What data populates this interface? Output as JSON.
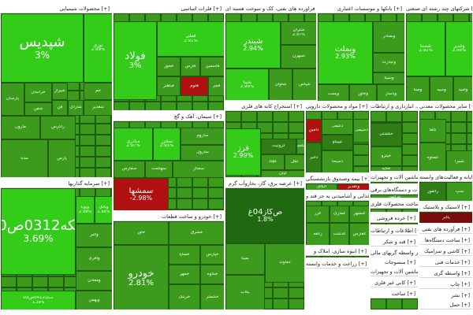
{
  "colors": {
    "up_bright": "#33cc19",
    "up": "#3c9a1d",
    "up_dark": "#2f7d15",
    "up_deep": "#1f6a10",
    "down": "#b01010",
    "down_dark": "#7a0c0c",
    "border": "#1f5a0e",
    "header_bg": "#ffffff"
  },
  "sectors": [
    {
      "id": "s1",
      "title": "محصولات شیمیایی [+]",
      "cells": [
        {
          "sym": "شپدیس",
          "chg": "3%",
          "size": "xl",
          "color": "up_bright"
        },
        {
          "sym": "نوری",
          "chg": "2.99%",
          "size": "s",
          "color": "up_bright"
        },
        {
          "sym": "پارسان",
          "chg": "",
          "size": "xs",
          "color": "up"
        },
        {
          "sym": "جم",
          "chg": "",
          "size": "xs",
          "color": "up"
        },
        {
          "sym": "شاراک",
          "chg": "",
          "size": "xs",
          "color": "up"
        },
        {
          "sym": "شغدیر",
          "chg": "",
          "size": "xs",
          "color": "up"
        },
        {
          "sym": "خراسان",
          "chg": "",
          "size": "xs",
          "color": "up"
        },
        {
          "sym": "شیراز",
          "chg": "",
          "size": "xs",
          "color": "up"
        },
        {
          "sym": "فن",
          "chg": "",
          "size": "xs",
          "color": "up"
        },
        {
          "sym": "شفن",
          "chg": "",
          "size": "xs",
          "color": "up"
        },
        {
          "sym": "مارون",
          "chg": "",
          "size": "xs",
          "color": "up"
        },
        {
          "sym": "زاگرس",
          "chg": "",
          "size": "xs",
          "color": "up"
        },
        {
          "sym": "سابا",
          "chg": "",
          "size": "xs",
          "color": "up"
        },
        {
          "sym": "پارس",
          "chg": "",
          "size": "xs",
          "color": "up"
        }
      ]
    },
    {
      "id": "s2",
      "title": "فلزات اساسی [+]",
      "cells": [
        {
          "sym": "فولاد",
          "chg": "3%",
          "size": "l",
          "color": "up_bright"
        },
        {
          "sym": "فملی",
          "chg": "2.91%",
          "size": "s",
          "color": "up_bright"
        },
        {
          "sym": "فخوز",
          "chg": "",
          "size": "xs",
          "color": "up"
        },
        {
          "sym": "فارس",
          "chg": "",
          "size": "xs",
          "color": "up"
        },
        {
          "sym": "فاسمین",
          "chg": "",
          "size": "xs",
          "color": "up"
        },
        {
          "sym": "فلوم",
          "chg": "",
          "size": "xs",
          "color": "down"
        },
        {
          "sym": "فباهنر",
          "chg": "",
          "size": "xs",
          "color": "up"
        },
        {
          "sym": "فجر",
          "chg": "",
          "size": "xs",
          "color": "up"
        }
      ]
    },
    {
      "id": "s3",
      "title": "فراورده های نفتی، کک و سوخت هسته ای [+]",
      "cells": [
        {
          "sym": "شبندر",
          "chg": "2.94%",
          "size": "m",
          "color": "up_bright"
        },
        {
          "sym": "شتران",
          "chg": "2.97%",
          "size": "xs",
          "color": "up"
        },
        {
          "sym": "شپنا",
          "chg": "2.99%",
          "size": "s",
          "color": "up_bright"
        },
        {
          "sym": "شبهرن",
          "chg": "",
          "size": "xs",
          "color": "up"
        },
        {
          "sym": "شاوان",
          "chg": "",
          "size": "xs",
          "color": "up"
        },
        {
          "sym": "شپاس",
          "chg": "",
          "size": "xs",
          "color": "up"
        }
      ]
    },
    {
      "id": "s4",
      "title": "بانکها و موسسات اعتباری [+]",
      "cells": [
        {
          "sym": "وبملت",
          "chg": "2.93%",
          "size": "m",
          "color": "up_bright"
        },
        {
          "sym": "وبصادر",
          "chg": "",
          "size": "xs",
          "color": "up"
        },
        {
          "sym": "وتجارت",
          "chg": "",
          "size": "xs",
          "color": "up"
        },
        {
          "sym": "وپست",
          "chg": "",
          "size": "xs",
          "color": "up"
        },
        {
          "sym": "وخاور",
          "chg": "",
          "size": "xs",
          "color": "up"
        },
        {
          "sym": "وسینا",
          "chg": "",
          "size": "xs",
          "color": "up"
        },
        {
          "sym": "وپاسار",
          "chg": "",
          "size": "xs",
          "color": "up"
        },
        {
          "sym": "ونوین",
          "chg": "",
          "size": "xs",
          "color": "up"
        }
      ]
    },
    {
      "id": "s5",
      "title": "شرکتهای چند رشته ای صنعتی [+]",
      "cells": [
        {
          "sym": "شستا",
          "chg": "2.92%",
          "size": "s",
          "color": "up_bright"
        },
        {
          "sym": "وغدیر",
          "chg": "2.96%",
          "size": "s",
          "color": "up_bright"
        },
        {
          "sym": "وصنا",
          "chg": "",
          "size": "xs",
          "color": "up"
        },
        {
          "sym": "وسپه",
          "chg": "",
          "size": "xs",
          "color": "up"
        },
        {
          "sym": "وامید",
          "chg": "",
          "size": "xs",
          "color": "up"
        }
      ]
    },
    {
      "id": "s6",
      "title": "سیمان، آهک و گچ [+]",
      "cells": [
        {
          "sym": "ساذری",
          "chg": "2.97%",
          "size": "s",
          "color": "up_bright"
        },
        {
          "sym": "سخزر",
          "chg": "2.95%",
          "size": "s",
          "color": "up_bright"
        },
        {
          "sym": "ساروم",
          "chg": "",
          "size": "xs",
          "color": "up"
        },
        {
          "sym": "سارول",
          "chg": "",
          "size": "xs",
          "color": "up"
        },
        {
          "sym": "سفارس",
          "chg": "",
          "size": "xs",
          "color": "up"
        },
        {
          "sym": "سهگمت",
          "chg": "",
          "size": "xs",
          "color": "up"
        },
        {
          "sym": "سمتاز",
          "chg": "",
          "size": "xs",
          "color": "up"
        },
        {
          "sym": "ساوه",
          "chg": "",
          "size": "xs",
          "color": "up"
        },
        {
          "sym": "سفقا",
          "chg": "",
          "size": "xs",
          "color": "up"
        },
        {
          "sym": "سبزوا",
          "chg": "",
          "size": "xs",
          "color": "up"
        },
        {
          "sym": "سمشها",
          "chg": "-2.98%",
          "size": "m",
          "color": "down"
        }
      ]
    },
    {
      "id": "s7",
      "title": "استخراج کانه های فلزی [+]",
      "cells": [
        {
          "sym": "فرز",
          "chg": "2.99%",
          "size": "m",
          "color": "up_bright"
        },
        {
          "sym": "کروثیت",
          "chg": "",
          "size": "xs",
          "color": "up_dark"
        },
        {
          "sym": "کچاد",
          "chg": "",
          "size": "xs",
          "color": "up"
        },
        {
          "sym": "کگل",
          "chg": "",
          "size": "xs",
          "color": "up"
        },
        {
          "sym": "تکسا",
          "chg": "",
          "size": "xs",
          "color": "up"
        },
        {
          "sym": "کیان",
          "chg": "",
          "size": "xs",
          "color": "up"
        }
      ]
    },
    {
      "id": "s8",
      "title": "مواد و محصولات دارویی [+]",
      "cells": [
        {
          "sym": "دالبر",
          "chg": "",
          "size": "xs",
          "color": "up_dark"
        },
        {
          "sym": "دکیمی",
          "chg": "",
          "size": "xs",
          "color": "up"
        },
        {
          "sym": "تیپیکو",
          "chg": "",
          "size": "xs",
          "color": "up_dark"
        },
        {
          "sym": "دشیمی",
          "chg": "",
          "size": "xs",
          "color": "up"
        },
        {
          "sym": "دسبحا",
          "chg": "",
          "size": "xs",
          "color": "up"
        },
        {
          "sym": "دامین",
          "chg": "",
          "size": "xs",
          "color": "down"
        }
      ]
    },
    {
      "id": "s9",
      "title": "حمل ونقل، انبارداری و ارتباطات [+]",
      "cells": [
        {
          "sym": "حکشتی",
          "chg": "",
          "size": "xs",
          "color": "up_dark"
        },
        {
          "sym": "حپترو",
          "chg": "",
          "size": "xs",
          "color": "up"
        },
        {
          "sym": "حتاید",
          "chg": "",
          "size": "xs",
          "color": "up"
        }
      ]
    },
    {
      "id": "s10",
      "title": "سایر محصولات معدنی [+]",
      "cells": [
        {
          "sym": "کساوه",
          "chg": "",
          "size": "xs",
          "color": "up"
        },
        {
          "sym": "کسرا",
          "chg": "",
          "size": "xs",
          "color": "up"
        },
        {
          "sym": "کاما",
          "chg": "",
          "size": "xs",
          "color": "up"
        }
      ]
    },
    {
      "id": "s11",
      "title": "رایانه و فعالیت‌های وابسته [+]",
      "cells": [
        {
          "sym": "رانفور",
          "chg": "",
          "size": "xs",
          "color": "up_dark"
        },
        {
          "sym": "سپ",
          "chg": "",
          "size": "xs",
          "color": "up"
        }
      ]
    },
    {
      "id": "s12",
      "title": "عرضه برق، گاز، بخاروآب گرم [+]",
      "cells": [
        {
          "sym": "ص‌گاز04غ",
          "chg": "1.8%",
          "size": "m",
          "color": "up_deep"
        },
        {
          "sym": "بمپنا",
          "chg": "",
          "size": "xs",
          "color": "up"
        },
        {
          "sym": "دماوند",
          "chg": "",
          "size": "xs",
          "color": "up"
        },
        {
          "sym": "بکاب",
          "chg": "",
          "size": "xs",
          "color": "up"
        }
      ]
    },
    {
      "id": "s13",
      "title": "بیمه وصندوق بازنشستگی [+]",
      "cells": [
        {
          "sym": "اتکای",
          "chg": "",
          "size": "xs",
          "color": "up"
        },
        {
          "sym": "وکغدیر",
          "chg": "",
          "size": "xs",
          "color": "down"
        }
      ]
    },
    {
      "id": "s14",
      "title": "ماشین آلات و تجهیزات [+]",
      "cells": [
        {
          "sym": "کالا",
          "chg": "",
          "size": "xs",
          "color": "up"
        }
      ]
    },
    {
      "id": "s15",
      "title": "ماشین آلات و دستگاه‌های برقی [+]",
      "cells": [
        {
          "sym": "بترانس",
          "chg": "",
          "size": "xs",
          "color": "up"
        }
      ]
    },
    {
      "id": "s16",
      "title": "لاستیک و پلاستیک [+]",
      "cells": [
        {
          "sym": "پتایر",
          "chg": "",
          "size": "xs",
          "color": "down_dark"
        }
      ]
    },
    {
      "id": "s17",
      "title": "سرمایه گذاریها [+]",
      "cells": [
        {
          "sym": "سکه0312ص10",
          "chg": "3.69%",
          "size": "xl",
          "color": "up_bright"
        },
        {
          "sym": "وپویا",
          "chg": "2.99%",
          "size": "xs",
          "color": "up_bright"
        },
        {
          "sym": "وبانک",
          "chg": "2.98%",
          "size": "xs",
          "color": "up_bright"
        },
        {
          "sym": "والبر",
          "chg": "",
          "size": "xs",
          "color": "up"
        },
        {
          "sym": "وآفری",
          "chg": "",
          "size": "xs",
          "color": "up"
        },
        {
          "sym": "ومعادن",
          "chg": "",
          "size": "xs",
          "color": "up"
        },
        {
          "sym": "وبهمن",
          "chg": "",
          "size": "xs",
          "color": "up"
        },
        {
          "sym": "سکه0412ص03",
          "chg": "3.39%",
          "size": "xs",
          "color": "up_bright"
        }
      ]
    },
    {
      "id": "s18",
      "title": "خودرو و ساخت قطعات [+]",
      "cells": [
        {
          "sym": "خودرو",
          "chg": "2.81%",
          "size": "l",
          "color": "up"
        },
        {
          "sym": "خساپا",
          "chg": "",
          "size": "xs",
          "color": "up"
        },
        {
          "sym": "خپارس",
          "chg": "",
          "size": "xs",
          "color": "up"
        },
        {
          "sym": "خمهر",
          "chg": "",
          "size": "xs",
          "color": "up"
        },
        {
          "sym": "خکاوه",
          "chg": "",
          "size": "xs",
          "color": "up"
        },
        {
          "sym": "خرینگ",
          "chg": "",
          "size": "xs",
          "color": "up"
        },
        {
          "sym": "خگستر",
          "chg": "",
          "size": "xs",
          "color": "up"
        },
        {
          "sym": "خاور",
          "chg": "",
          "size": "xs",
          "color": "up"
        },
        {
          "sym": "خشرق",
          "chg": "",
          "size": "xs",
          "color": "up"
        }
      ]
    },
    {
      "id": "s19",
      "title": "محصولات غذایی و آشامیدنی به جز قند و [+]",
      "cells": [
        {
          "sym": "غزر",
          "chg": "",
          "size": "xs",
          "color": "up"
        },
        {
          "sym": "غمارگ",
          "chg": "",
          "size": "xs",
          "color": "up"
        },
        {
          "sym": "غبشهر",
          "chg": "",
          "size": "xs",
          "color": "up"
        },
        {
          "sym": "زغفه",
          "chg": "",
          "size": "xs",
          "color": "up"
        },
        {
          "sym": "غدشت",
          "chg": "",
          "size": "xs",
          "color": "up"
        },
        {
          "sym": "غفارس",
          "chg": "",
          "size": "xs",
          "color": "up"
        },
        {
          "sym": "غکوش",
          "chg": "",
          "size": "xs",
          "color": "up"
        },
        {
          "sym": "غپینو",
          "chg": "",
          "size": "xs",
          "color": "up"
        }
      ]
    },
    {
      "id": "s20",
      "title": "انبوه سازی، املاک و [+]",
      "cells": []
    },
    {
      "id": "s21",
      "title": "زراعت و خدمات وابسته [+]",
      "cells": []
    },
    {
      "id": "s22",
      "title": "ساخت محصولات فلزی [+]",
      "cells": []
    },
    {
      "id": "s23",
      "title": "خرده فروشی [+]",
      "cells": []
    },
    {
      "id": "s24",
      "title": "اطلاعات و ارتباطات [+]",
      "cells": []
    },
    {
      "id": "s25",
      "title": "قند و شکر [+]",
      "cells": []
    },
    {
      "id": "s26",
      "title": "فرآورده های نفتی [+]",
      "cells": []
    },
    {
      "id": "s27",
      "title": "ساخت دستگاه‌ها [+]",
      "cells": []
    },
    {
      "id": "s28",
      "title": "سایر واسطه گریهای مالی [+]",
      "cells": []
    },
    {
      "id": "s29",
      "title": "کاشی و سرامیک [+]",
      "cells": []
    },
    {
      "id": "s30",
      "title": "منسوجات [+]",
      "cells": []
    },
    {
      "id": "s31",
      "title": "خدمات فنی [+]",
      "cells": []
    },
    {
      "id": "s32",
      "title": "ماشین آلات و تجهیزات [+]",
      "cells": []
    },
    {
      "id": "s33",
      "title": "واسطه گری [+]",
      "cells": []
    },
    {
      "id": "s34",
      "title": "کانی غیر فلزی [+]",
      "cells": []
    },
    {
      "id": "s35",
      "title": "چاپ [+]",
      "cells": []
    },
    {
      "id": "s36",
      "title": "ساخت [+]",
      "cells": []
    },
    {
      "id": "s37",
      "title": "نشر [+]",
      "cells": []
    },
    {
      "id": "s38",
      "title": "حمل [+]",
      "cells": []
    }
  ]
}
